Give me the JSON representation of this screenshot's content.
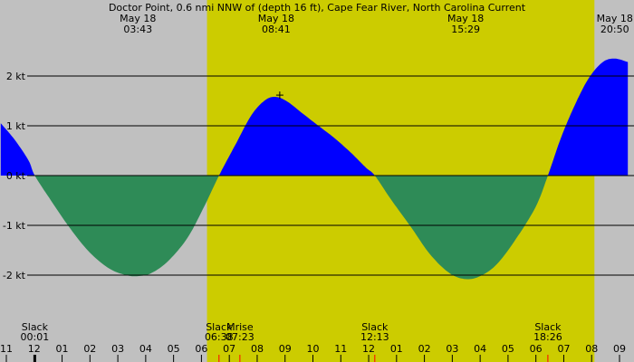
{
  "chart_data": {
    "type": "area",
    "title": "Doctor Point, 0.6 nmi NNW of (depth 16 ft), Cape Fear River, North Carolina Current",
    "colors": {
      "background": "#c0c0c0",
      "daylight": "#cccc00",
      "flood": "#0000ff",
      "ebb": "#2e8b57",
      "gridline": "#000000",
      "tick_marker": "#ff0000"
    },
    "ylim": [
      -2.0,
      2.4
    ],
    "y_ticks": [
      {
        "value": 2,
        "label": "2 kt"
      },
      {
        "value": 1,
        "label": "1 kt"
      },
      {
        "value": 0,
        "label": "0 kt"
      },
      {
        "value": -1,
        "label": "-1 kt"
      },
      {
        "value": -2,
        "label": "-2 kt"
      }
    ],
    "x_start_hour": 23.0,
    "x_end_hour": 33.5,
    "hour_labels": [
      {
        "hour": 23,
        "label": "11"
      },
      {
        "hour": 24,
        "label": "12"
      },
      {
        "hour": 25,
        "label": "01"
      },
      {
        "hour": 26,
        "label": "02"
      },
      {
        "hour": 27,
        "label": "03"
      },
      {
        "hour": 28,
        "label": "04"
      },
      {
        "hour": 29,
        "label": "05"
      },
      {
        "hour": 30,
        "label": "06"
      },
      {
        "hour": 31,
        "label": "07"
      },
      {
        "hour": 32,
        "label": "08"
      },
      {
        "hour": 33,
        "label": "09"
      },
      {
        "hour": 34,
        "label": "10"
      },
      {
        "hour": 35,
        "label": "11"
      },
      {
        "hour": 36,
        "label": "12"
      },
      {
        "hour": 37,
        "label": "01"
      },
      {
        "hour": 38,
        "label": "02"
      },
      {
        "hour": 39,
        "label": "03"
      },
      {
        "hour": 40,
        "label": "04"
      },
      {
        "hour": 41,
        "label": "05"
      },
      {
        "hour": 42,
        "label": "06"
      },
      {
        "hour": 43,
        "label": "07"
      },
      {
        "hour": 44,
        "label": "08"
      },
      {
        "hour": 45,
        "label": "09"
      }
    ],
    "daylight": {
      "start_hour": 30.2,
      "end_hour": 44.1
    },
    "peaks": [
      {
        "date": "May 18",
        "time": "03:43",
        "hour": 27.72
      },
      {
        "date": "May 18",
        "time": "08:41",
        "hour": 32.68
      },
      {
        "date": "May 18",
        "time": "15:29",
        "hour": 39.48
      },
      {
        "date": "May 18",
        "time": "20:50",
        "hour": 44.83
      }
    ],
    "events": [
      {
        "label": "Slack",
        "time": "00:01",
        "hour": 24.02,
        "marker_color": "#000000"
      },
      {
        "label": "Slack",
        "time": "06:38",
        "hour": 30.63,
        "marker_color": "#ff0000"
      },
      {
        "label": "Mrise",
        "time": "07:23",
        "hour": 31.38,
        "marker_color": "#ff0000"
      },
      {
        "label": "Slack",
        "time": "12:13",
        "hour": 36.22,
        "marker_color": "#ff0000"
      },
      {
        "label": "Slack",
        "time": "18:26",
        "hour": 42.43,
        "marker_color": "#ff0000"
      }
    ],
    "series": [
      {
        "x": [
          22.8,
          23.3,
          23.8,
          24.02,
          24.6,
          25.3,
          26.0,
          26.7,
          27.3,
          27.72,
          28.2,
          28.8,
          29.5,
          30.1,
          30.63,
          31.2,
          31.8,
          32.3,
          32.68,
          33.1,
          33.6,
          34.2,
          34.8,
          35.4,
          35.9,
          36.22,
          36.8,
          37.5,
          38.2,
          38.9,
          39.48,
          40.0,
          40.6,
          41.3,
          42.0,
          42.43,
          42.9,
          43.4,
          43.9,
          44.4,
          44.83,
          45.3
        ],
        "values": [
          1.05,
          0.72,
          0.3,
          0.0,
          -0.5,
          -1.07,
          -1.55,
          -1.87,
          -2.0,
          -2.02,
          -1.96,
          -1.72,
          -1.25,
          -0.62,
          0.0,
          0.6,
          1.22,
          1.52,
          1.58,
          1.48,
          1.26,
          1.0,
          0.74,
          0.44,
          0.16,
          0.0,
          -0.48,
          -1.02,
          -1.58,
          -1.96,
          -2.08,
          -2.02,
          -1.78,
          -1.26,
          -0.62,
          0.0,
          0.76,
          1.42,
          1.96,
          2.28,
          2.35,
          2.28
        ]
      }
    ],
    "current_marker": {
      "hour": 32.68,
      "value": 1.58
    }
  }
}
